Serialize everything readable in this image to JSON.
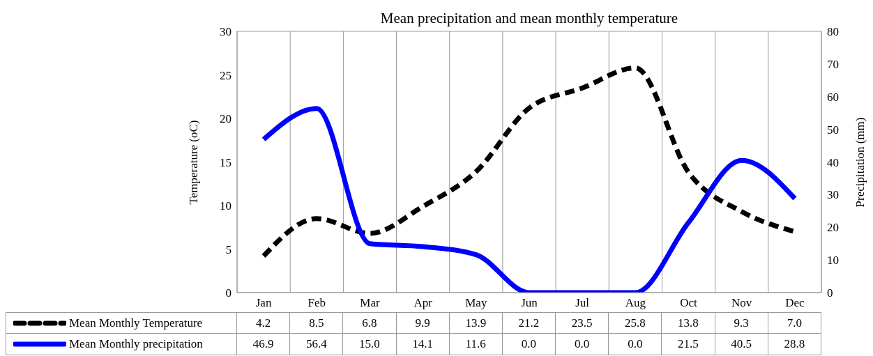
{
  "chart_data": {
    "type": "line",
    "title": "Mean precipitation and mean monthly temperature",
    "ylabel": "Temperature (oC)",
    "y2label": "Precipitation (mm)",
    "categories": [
      "Jan",
      "Feb",
      "Mar",
      "Apr",
      "May",
      "Jun",
      "Jul",
      "Aug",
      "Oct",
      "Nov",
      "Dec"
    ],
    "series": [
      {
        "name": "Mean Monthly Temperature",
        "color": "#000000",
        "line_style": "dashed",
        "values": [
          4.2,
          8.5,
          6.8,
          9.9,
          13.9,
          21.2,
          23.5,
          25.8,
          13.8,
          9.3,
          7.0
        ],
        "value_labels": [
          "4.2",
          "8.5",
          "6.8",
          "9.9",
          "13.9",
          "21.2",
          "23.5",
          "25.8",
          "13.8",
          "9.3",
          "7.0"
        ]
      },
      {
        "name": "Mean Monthly precipitation",
        "color": "#0000ff",
        "line_style": "solid",
        "axis": "y2",
        "values": [
          46.9,
          56.4,
          15.0,
          14.1,
          11.6,
          0.0,
          0.0,
          0.0,
          21.5,
          40.5,
          28.8
        ],
        "value_labels": [
          "46.9",
          "56.4",
          "15.0",
          "14.1",
          "11.6",
          "0.0",
          "0.0",
          "0.0",
          "21.5",
          "40.5",
          "28.8"
        ]
      }
    ],
    "ylim": [
      0,
      30
    ],
    "yticks": [
      0,
      5,
      10,
      15,
      20,
      25,
      30
    ],
    "y2lim": [
      0,
      80
    ],
    "y2ticks": [
      0,
      10,
      20,
      30,
      40,
      50,
      60,
      70,
      80
    ],
    "grid": true,
    "legend": "bottom"
  }
}
